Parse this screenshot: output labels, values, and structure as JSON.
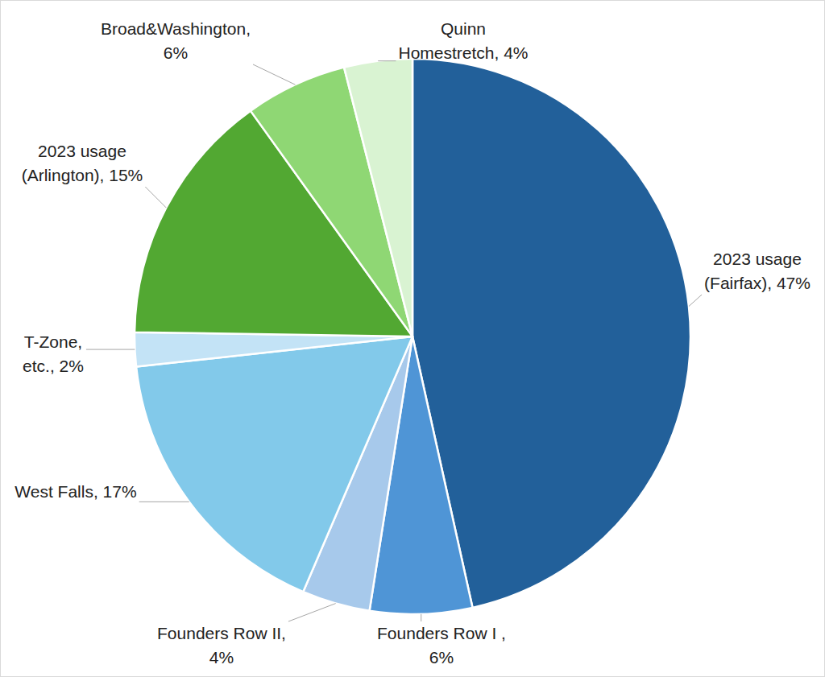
{
  "chart_data": {
    "type": "pie",
    "categories": [
      "2023 usage (Fairfax)",
      "Founders Row I",
      "Founders Row II",
      "West Falls",
      "T-Zone, etc.",
      "2023 usage (Arlington)",
      "Broad&Washington",
      "Quinn Homestretch"
    ],
    "values": [
      47,
      6,
      4,
      17,
      2,
      15,
      6,
      4
    ],
    "value_labels": [
      "2023 usage (Fairfax), 47%",
      "Founders Row I , 6%",
      "Founders Row II, 4%",
      "West Falls, 17%",
      "T-Zone, etc., 2%",
      "2023 usage (Arlington), 15%",
      "Broad&Washington, 6%",
      "Quinn Homestretch, 4%"
    ],
    "colors": [
      "#22609a",
      "#4f95d6",
      "#a7c9eb",
      "#82c9ea",
      "#c3e3f6",
      "#52a832",
      "#8fd774",
      "#d9f3d2"
    ],
    "data_labels": true
  }
}
